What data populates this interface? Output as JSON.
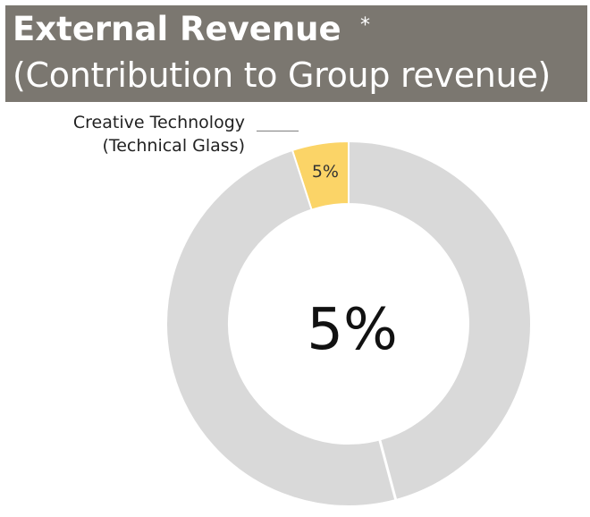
{
  "header": {
    "title": "External Revenue",
    "asterisk": "*",
    "subtitle": "(Contribution to Group revenue)"
  },
  "callout": {
    "line1": "Creative  Technology",
    "line2": "(Technical Glass)"
  },
  "colors": {
    "header_bg": "#7b7770",
    "highlight": "#fbd467",
    "rest": "#d9d9d9",
    "separator": "#ffffff"
  },
  "chart_data": {
    "type": "pie",
    "style": "donut",
    "center_label": "5%",
    "slices": [
      {
        "name": "Creative  Technology (Technical Glass)",
        "value": 5,
        "label": "5%",
        "color": "#fbd467"
      },
      {
        "value": 95,
        "color": "#d9d9d9"
      }
    ]
  }
}
